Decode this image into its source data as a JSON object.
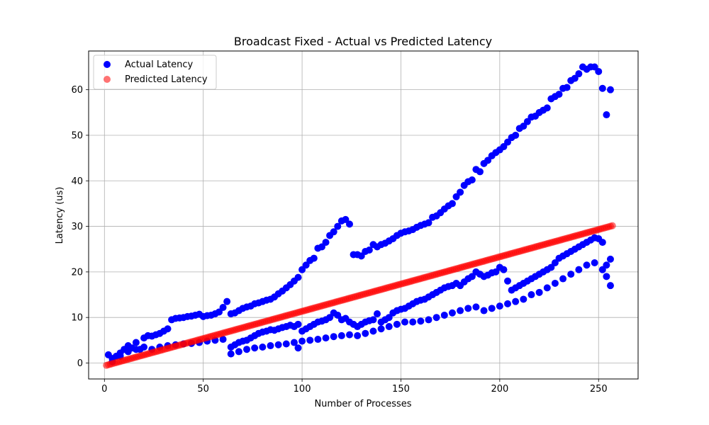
{
  "chart_data": {
    "type": "scatter",
    "title": "Broadcast Fixed - Actual vs Predicted Latency",
    "xlabel": "Number of Processes",
    "ylabel": "Latency (us)",
    "xlim": [
      -8,
      270
    ],
    "ylim": [
      -3.5,
      68.5
    ],
    "xticks": [
      0,
      50,
      100,
      150,
      200,
      250
    ],
    "yticks": [
      0,
      10,
      20,
      30,
      40,
      50,
      60
    ],
    "grid": true,
    "legend_position": "top-left",
    "series": [
      {
        "name": "Actual Latency",
        "color": "#0000ff",
        "alpha": 1.0,
        "points": [
          [
            2,
            1.8
          ],
          [
            4,
            1.0
          ],
          [
            6,
            1.5
          ],
          [
            8,
            2.2
          ],
          [
            10,
            3.0
          ],
          [
            12,
            3.8
          ],
          [
            14,
            3.3
          ],
          [
            16,
            4.5
          ],
          [
            18,
            3.0
          ],
          [
            20,
            5.5
          ],
          [
            22,
            6.0
          ],
          [
            24,
            5.9
          ],
          [
            26,
            6.2
          ],
          [
            28,
            6.5
          ],
          [
            30,
            7.0
          ],
          [
            32,
            7.5
          ],
          [
            34,
            9.5
          ],
          [
            36,
            9.8
          ],
          [
            38,
            9.9
          ],
          [
            40,
            10.0
          ],
          [
            42,
            10.2
          ],
          [
            44,
            10.3
          ],
          [
            46,
            10.5
          ],
          [
            48,
            10.7
          ],
          [
            50,
            10.2
          ],
          [
            52,
            10.4
          ],
          [
            54,
            10.5
          ],
          [
            56,
            10.8
          ],
          [
            58,
            11.2
          ],
          [
            60,
            12.2
          ],
          [
            62,
            13.5
          ],
          [
            64,
            10.8
          ],
          [
            66,
            11.0
          ],
          [
            68,
            11.5
          ],
          [
            70,
            12.0
          ],
          [
            72,
            12.3
          ],
          [
            74,
            12.5
          ],
          [
            76,
            13.0
          ],
          [
            78,
            13.2
          ],
          [
            80,
            13.5
          ],
          [
            82,
            13.8
          ],
          [
            84,
            14.0
          ],
          [
            86,
            14.5
          ],
          [
            88,
            15.2
          ],
          [
            90,
            15.8
          ],
          [
            92,
            16.5
          ],
          [
            94,
            17.2
          ],
          [
            96,
            18.0
          ],
          [
            98,
            18.8
          ],
          [
            100,
            20.5
          ],
          [
            102,
            21.5
          ],
          [
            104,
            22.5
          ],
          [
            106,
            23.0
          ],
          [
            108,
            25.2
          ],
          [
            110,
            25.5
          ],
          [
            112,
            26.5
          ],
          [
            114,
            28.0
          ],
          [
            116,
            28.8
          ],
          [
            118,
            30.0
          ],
          [
            120,
            31.2
          ],
          [
            122,
            31.5
          ],
          [
            124,
            30.5
          ],
          [
            126,
            23.8
          ],
          [
            128,
            23.8
          ],
          [
            130,
            23.5
          ],
          [
            132,
            24.5
          ],
          [
            134,
            24.8
          ],
          [
            136,
            26.0
          ],
          [
            138,
            25.5
          ],
          [
            140,
            26.0
          ],
          [
            142,
            26.3
          ],
          [
            144,
            26.8
          ],
          [
            146,
            27.3
          ],
          [
            148,
            28.0
          ],
          [
            150,
            28.5
          ],
          [
            152,
            28.8
          ],
          [
            154,
            29.0
          ],
          [
            156,
            29.3
          ],
          [
            158,
            29.8
          ],
          [
            160,
            30.2
          ],
          [
            162,
            30.5
          ],
          [
            164,
            30.8
          ],
          [
            166,
            32.0
          ],
          [
            168,
            32.3
          ],
          [
            170,
            33.0
          ],
          [
            172,
            33.8
          ],
          [
            174,
            34.5
          ],
          [
            176,
            35.0
          ],
          [
            178,
            36.5
          ],
          [
            180,
            37.5
          ],
          [
            182,
            39.0
          ],
          [
            184,
            39.8
          ],
          [
            186,
            40.2
          ],
          [
            188,
            42.5
          ],
          [
            190,
            42.0
          ],
          [
            192,
            43.8
          ],
          [
            194,
            44.5
          ],
          [
            196,
            45.5
          ],
          [
            198,
            46.2
          ],
          [
            200,
            46.8
          ],
          [
            202,
            47.5
          ],
          [
            204,
            48.5
          ],
          [
            206,
            49.5
          ],
          [
            208,
            50.0
          ],
          [
            210,
            51.5
          ],
          [
            212,
            52.0
          ],
          [
            214,
            53.0
          ],
          [
            216,
            54.0
          ],
          [
            218,
            54.2
          ],
          [
            220,
            55.0
          ],
          [
            222,
            55.5
          ],
          [
            224,
            56.0
          ],
          [
            226,
            58.0
          ],
          [
            228,
            58.5
          ],
          [
            230,
            59.0
          ],
          [
            232,
            60.3
          ],
          [
            234,
            60.5
          ],
          [
            236,
            62.0
          ],
          [
            238,
            62.5
          ],
          [
            240,
            63.5
          ],
          [
            242,
            65.0
          ],
          [
            244,
            64.5
          ],
          [
            246,
            65.0
          ],
          [
            248,
            65.0
          ],
          [
            250,
            64.0
          ],
          [
            252,
            60.3
          ],
          [
            254,
            54.5
          ],
          [
            256,
            60.0
          ],
          [
            4,
            0.3
          ],
          [
            8,
            1.5
          ],
          [
            12,
            2.5
          ],
          [
            16,
            3.0
          ],
          [
            20,
            3.5
          ],
          [
            24,
            3.0
          ],
          [
            28,
            3.5
          ],
          [
            32,
            3.8
          ],
          [
            36,
            4.0
          ],
          [
            40,
            4.2
          ],
          [
            44,
            4.3
          ],
          [
            48,
            4.5
          ],
          [
            52,
            4.8
          ],
          [
            56,
            5.0
          ],
          [
            60,
            5.2
          ],
          [
            64,
            3.5
          ],
          [
            66,
            4.0
          ],
          [
            68,
            4.5
          ],
          [
            70,
            4.8
          ],
          [
            72,
            5.0
          ],
          [
            74,
            5.5
          ],
          [
            76,
            6.0
          ],
          [
            78,
            6.5
          ],
          [
            80,
            6.8
          ],
          [
            82,
            7.0
          ],
          [
            84,
            7.3
          ],
          [
            86,
            7.2
          ],
          [
            88,
            7.5
          ],
          [
            90,
            7.8
          ],
          [
            92,
            8.0
          ],
          [
            94,
            8.3
          ],
          [
            96,
            8.0
          ],
          [
            98,
            8.5
          ],
          [
            100,
            7.0
          ],
          [
            102,
            7.5
          ],
          [
            104,
            8.0
          ],
          [
            106,
            8.5
          ],
          [
            108,
            9.0
          ],
          [
            110,
            9.2
          ],
          [
            112,
            9.5
          ],
          [
            114,
            10.0
          ],
          [
            116,
            11.0
          ],
          [
            118,
            10.5
          ],
          [
            120,
            9.5
          ],
          [
            122,
            9.8
          ],
          [
            124,
            9.0
          ],
          [
            126,
            8.5
          ],
          [
            128,
            8.0
          ],
          [
            130,
            8.5
          ],
          [
            132,
            9.0
          ],
          [
            134,
            9.3
          ],
          [
            136,
            9.5
          ],
          [
            138,
            10.8
          ],
          [
            140,
            9.0
          ],
          [
            142,
            9.5
          ],
          [
            144,
            10.0
          ],
          [
            146,
            11.0
          ],
          [
            148,
            11.5
          ],
          [
            150,
            11.8
          ],
          [
            152,
            12.0
          ],
          [
            154,
            12.5
          ],
          [
            156,
            13.0
          ],
          [
            158,
            13.5
          ],
          [
            160,
            13.8
          ],
          [
            162,
            14.0
          ],
          [
            164,
            14.5
          ],
          [
            166,
            15.0
          ],
          [
            168,
            15.5
          ],
          [
            170,
            16.0
          ],
          [
            172,
            16.5
          ],
          [
            174,
            16.8
          ],
          [
            176,
            17.0
          ],
          [
            178,
            17.5
          ],
          [
            180,
            17.0
          ],
          [
            182,
            17.8
          ],
          [
            184,
            18.5
          ],
          [
            186,
            19.0
          ],
          [
            188,
            20.0
          ],
          [
            190,
            19.5
          ],
          [
            192,
            19.0
          ],
          [
            194,
            19.3
          ],
          [
            196,
            19.8
          ],
          [
            198,
            20.0
          ],
          [
            200,
            21.0
          ],
          [
            202,
            20.5
          ],
          [
            204,
            18.0
          ],
          [
            206,
            16.0
          ],
          [
            208,
            16.5
          ],
          [
            210,
            17.0
          ],
          [
            212,
            17.5
          ],
          [
            214,
            18.0
          ],
          [
            216,
            18.5
          ],
          [
            218,
            19.0
          ],
          [
            220,
            19.5
          ],
          [
            222,
            20.0
          ],
          [
            224,
            20.5
          ],
          [
            226,
            21.0
          ],
          [
            228,
            22.0
          ],
          [
            230,
            23.0
          ],
          [
            232,
            23.5
          ],
          [
            234,
            24.0
          ],
          [
            236,
            24.5
          ],
          [
            238,
            25.0
          ],
          [
            240,
            25.5
          ],
          [
            242,
            26.0
          ],
          [
            244,
            26.5
          ],
          [
            246,
            27.0
          ],
          [
            248,
            27.5
          ],
          [
            250,
            27.3
          ],
          [
            252,
            26.5
          ],
          [
            254,
            21.5
          ],
          [
            256,
            22.8
          ],
          [
            64,
            2.0
          ],
          [
            68,
            2.5
          ],
          [
            72,
            3.0
          ],
          [
            76,
            3.3
          ],
          [
            80,
            3.5
          ],
          [
            84,
            3.8
          ],
          [
            88,
            4.0
          ],
          [
            92,
            4.2
          ],
          [
            96,
            4.5
          ],
          [
            100,
            4.8
          ],
          [
            104,
            5.0
          ],
          [
            108,
            5.2
          ],
          [
            112,
            5.5
          ],
          [
            116,
            5.8
          ],
          [
            120,
            6.0
          ],
          [
            124,
            6.2
          ],
          [
            128,
            6.0
          ],
          [
            132,
            6.5
          ],
          [
            136,
            7.0
          ],
          [
            140,
            7.5
          ],
          [
            144,
            8.0
          ],
          [
            148,
            8.5
          ],
          [
            152,
            9.0
          ],
          [
            156,
            9.0
          ],
          [
            160,
            9.2
          ],
          [
            164,
            9.5
          ],
          [
            168,
            10.0
          ],
          [
            172,
            10.5
          ],
          [
            176,
            11.0
          ],
          [
            180,
            11.5
          ],
          [
            184,
            12.0
          ],
          [
            188,
            12.3
          ],
          [
            192,
            11.5
          ],
          [
            196,
            12.0
          ],
          [
            200,
            12.5
          ],
          [
            204,
            13.0
          ],
          [
            208,
            13.5
          ],
          [
            212,
            14.0
          ],
          [
            216,
            15.0
          ],
          [
            220,
            15.5
          ],
          [
            224,
            16.5
          ],
          [
            228,
            17.5
          ],
          [
            232,
            18.5
          ],
          [
            236,
            19.5
          ],
          [
            240,
            20.5
          ],
          [
            244,
            21.5
          ],
          [
            248,
            22.0
          ],
          [
            252,
            20.5
          ],
          [
            254,
            19.0
          ],
          [
            256,
            17.0
          ],
          [
            98,
            3.3
          ]
        ]
      },
      {
        "name": "Predicted Latency",
        "color": "#ff0000",
        "alpha": 0.55,
        "line": {
          "x_start": 1,
          "x_end": 257,
          "step": 1,
          "slope": 0.1197,
          "intercept": -0.62
        }
      }
    ]
  }
}
